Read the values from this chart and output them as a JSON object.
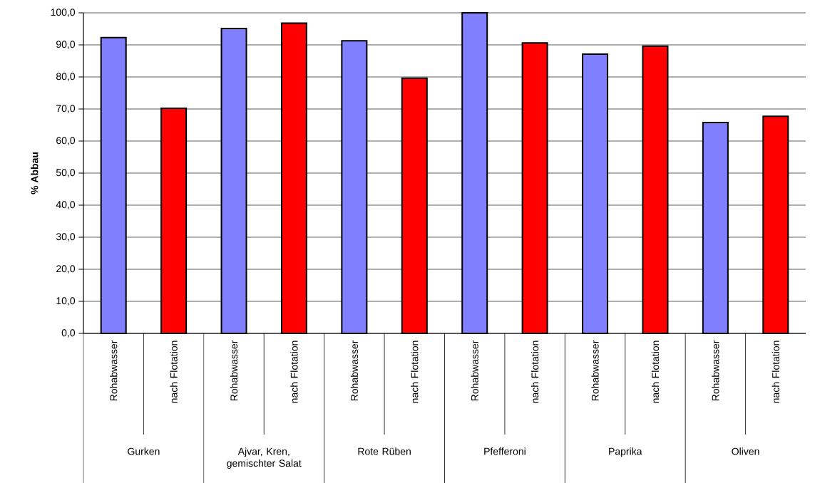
{
  "chart_data": {
    "type": "bar",
    "ylabel": "% Abbau",
    "categories": [
      "Rohabwasser",
      "nach Flotation",
      "Rohabwasser",
      "nach Flotation",
      "Rohabwasser",
      "nach Flotation",
      "Rohabwasser",
      "nach Flotation",
      "Rohabwasser",
      "nach Flotation",
      "Rohabwasser",
      "nach Flotation"
    ],
    "values": [
      92.3,
      70.2,
      95.1,
      96.8,
      91.3,
      79.6,
      100.0,
      90.6,
      87.1,
      89.6,
      65.8,
      67.7
    ],
    "colors": [
      "#8080ff",
      "#ff0000",
      "#8080ff",
      "#ff0000",
      "#8080ff",
      "#ff0000",
      "#8080ff",
      "#ff0000",
      "#8080ff",
      "#ff0000",
      "#8080ff",
      "#ff0000"
    ],
    "ylim": [
      0,
      100
    ],
    "yticks": [
      {
        "value": 0,
        "label": "0,0"
      },
      {
        "value": 10,
        "label": "10,0"
      },
      {
        "value": 20,
        "label": "20,0"
      },
      {
        "value": 30,
        "label": "30,0"
      },
      {
        "value": 40,
        "label": "40,0"
      },
      {
        "value": 50,
        "label": "50,0"
      },
      {
        "value": 60,
        "label": "60,0"
      },
      {
        "value": 70,
        "label": "70,0"
      },
      {
        "value": 80,
        "label": "80,0"
      },
      {
        "value": 90,
        "label": "90,0"
      },
      {
        "value": 100,
        "label": "100,0"
      }
    ],
    "grid": "y",
    "annotations": [
      "Gurken",
      "Ajvar, Kren, gemischter Salat",
      "Rote Rüben",
      "Pfefferoni",
      "Paprika",
      "Oliven"
    ]
  }
}
